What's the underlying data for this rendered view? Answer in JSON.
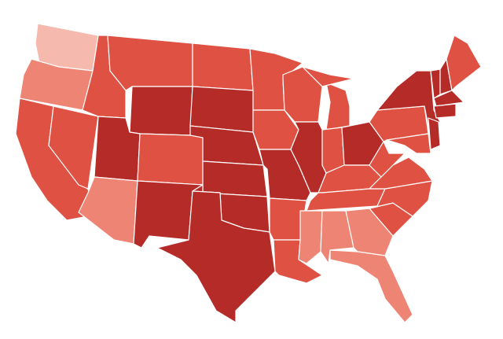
{
  "map": {
    "regions": [
      {
        "color": "#f5b9ad"
      },
      {
        "color": "#ee8473"
      },
      {
        "color": "#df5142"
      },
      {
        "color": "#df5142"
      },
      {
        "color": "#df5142"
      },
      {
        "color": "#df5142"
      },
      {
        "color": "#b42b28"
      },
      {
        "color": "#b42b28"
      },
      {
        "color": "#ee8473"
      },
      {
        "color": "#df5142"
      },
      {
        "color": "#b42b28"
      },
      {
        "color": "#df5142"
      },
      {
        "color": "#b42b28"
      },
      {
        "color": "#b42b28"
      },
      {
        "color": "#b42b28"
      },
      {
        "color": "#b42b28"
      },
      {
        "color": "#b42b28"
      },
      {
        "color": "#df5142"
      },
      {
        "color": "#df5142"
      },
      {
        "color": "#b42b28"
      },
      {
        "color": "#df5142"
      },
      {
        "color": "#df5142"
      },
      {
        "color": "#df5142"
      },
      {
        "color": "#b42b28"
      },
      {
        "color": "#df5142"
      },
      {
        "color": "#df5142"
      },
      {
        "color": "#df5142"
      },
      {
        "color": "#b42b28"
      },
      {
        "color": "#df5142"
      },
      {
        "color": "#df5142"
      },
      {
        "color": "#ee8473"
      },
      {
        "color": "#ee8473"
      },
      {
        "color": "#ee8473"
      },
      {
        "color": "#ee8473"
      },
      {
        "color": "#df5142"
      },
      {
        "color": "#df5142"
      },
      {
        "color": "#df5142"
      },
      {
        "color": "#df5142"
      },
      {
        "color": "#df5142"
      },
      {
        "color": "#b42b28"
      },
      {
        "color": "#df5142"
      },
      {
        "color": "#b42b28"
      },
      {
        "color": "#b42b28"
      },
      {
        "color": "#b42b28"
      },
      {
        "color": "#df5142"
      },
      {
        "color": "#b42b28"
      },
      {
        "color": "#b42b28"
      }
    ]
  }
}
